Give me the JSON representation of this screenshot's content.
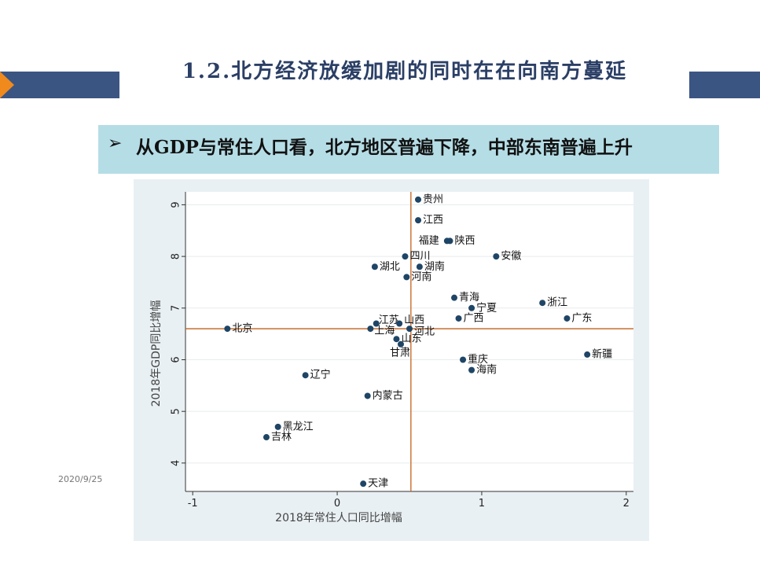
{
  "title": "1.2.北方经济放缓加剧的同时在在向南方蔓延",
  "subtitle": "从GDP与常住人口看，北方地区普遍下降，中部东南普遍上升",
  "subtitle_icon": "arrow-bullet-icon",
  "date": "2020/9/25",
  "colors": {
    "banner": "#3b5583",
    "accent_orange": "#f08a1c",
    "subtitle_bg": "#b5dde6",
    "point": "#1f4566",
    "reference_line": "#c4621d"
  },
  "chart_data": {
    "type": "scatter",
    "xlabel": "2018年常住人口同比增幅",
    "ylabel": "2018年GDP同比增幅",
    "xlim": [
      -1.05,
      2.05
    ],
    "ylim": [
      3.45,
      9.25
    ],
    "xticks": [
      -1,
      0,
      1,
      2
    ],
    "yticks": [
      4,
      5,
      6,
      7,
      8,
      9
    ],
    "reference_lines": {
      "x": 0.51,
      "y": 6.6
    },
    "grid": true,
    "points": [
      {
        "name": "贵州",
        "x": 0.56,
        "y": 9.1
      },
      {
        "name": "江西",
        "x": 0.56,
        "y": 8.7
      },
      {
        "name": "福建",
        "x": 0.76,
        "y": 8.3
      },
      {
        "name": "陕西",
        "x": 0.78,
        "y": 8.3
      },
      {
        "name": "四川",
        "x": 0.47,
        "y": 8.0
      },
      {
        "name": "安徽",
        "x": 1.1,
        "y": 8.0
      },
      {
        "name": "湖北",
        "x": 0.26,
        "y": 7.8
      },
      {
        "name": "湖南",
        "x": 0.57,
        "y": 7.8
      },
      {
        "name": "河南",
        "x": 0.48,
        "y": 7.6
      },
      {
        "name": "青海",
        "x": 0.81,
        "y": 7.2
      },
      {
        "name": "浙江",
        "x": 1.42,
        "y": 7.1
      },
      {
        "name": "宁夏",
        "x": 0.93,
        "y": 7.0
      },
      {
        "name": "广西",
        "x": 0.84,
        "y": 6.8
      },
      {
        "name": "广东",
        "x": 1.59,
        "y": 6.8
      },
      {
        "name": "江苏",
        "x": 0.27,
        "y": 6.7
      },
      {
        "name": "山西",
        "x": 0.43,
        "y": 6.7
      },
      {
        "name": "北京",
        "x": -0.76,
        "y": 6.6
      },
      {
        "name": "上海",
        "x": 0.23,
        "y": 6.6
      },
      {
        "name": "河北",
        "x": 0.5,
        "y": 6.6
      },
      {
        "name": "山东",
        "x": 0.41,
        "y": 6.4
      },
      {
        "name": "甘肃",
        "x": 0.44,
        "y": 6.3
      },
      {
        "name": "新疆",
        "x": 1.73,
        "y": 6.1
      },
      {
        "name": "重庆",
        "x": 0.87,
        "y": 6.0
      },
      {
        "name": "海南",
        "x": 0.93,
        "y": 5.8
      },
      {
        "name": "辽宁",
        "x": -0.22,
        "y": 5.7
      },
      {
        "name": "内蒙古",
        "x": 0.21,
        "y": 5.3
      },
      {
        "name": "黑龙江",
        "x": -0.41,
        "y": 4.7
      },
      {
        "name": "吉林",
        "x": -0.49,
        "y": 4.5
      },
      {
        "name": "天津",
        "x": 0.18,
        "y": 3.6
      }
    ]
  }
}
